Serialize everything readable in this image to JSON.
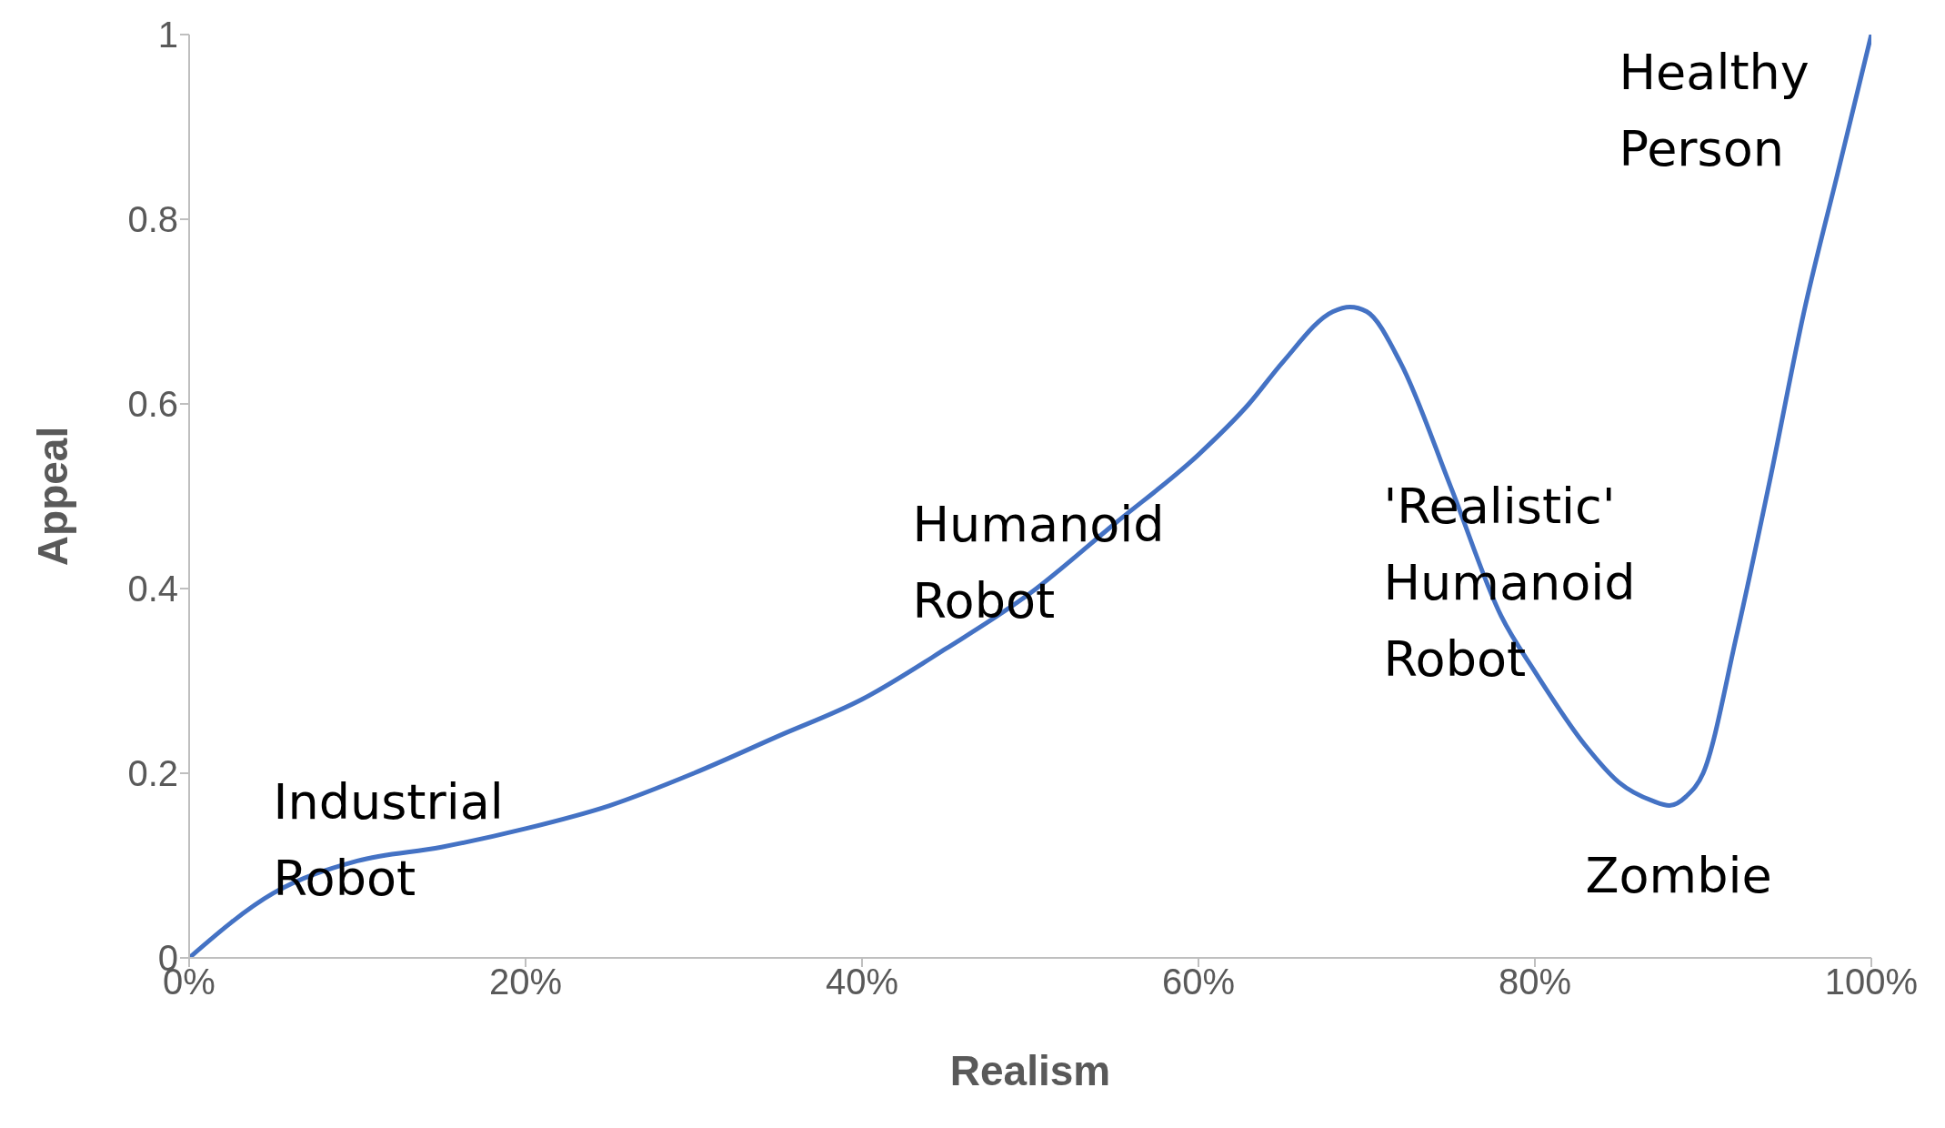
{
  "chart_data": {
    "type": "line",
    "xlabel": "Realism",
    "ylabel": "Appeal",
    "x": [
      0,
      5,
      10,
      15,
      20,
      25,
      30,
      35,
      40,
      45,
      50,
      55,
      60,
      63,
      65,
      68,
      69,
      70,
      72,
      75,
      78,
      80,
      83,
      85,
      87,
      88,
      89,
      90,
      92,
      94,
      96,
      98,
      100
    ],
    "series": [
      {
        "color": "#4472c4",
        "values": [
          0,
          0.07,
          0.105,
          0.12,
          0.14,
          0.165,
          0.2,
          0.24,
          0.28,
          0.335,
          0.395,
          0.47,
          0.545,
          0.6,
          0.645,
          0.7,
          0.705,
          0.7,
          0.645,
          0.51,
          0.37,
          0.31,
          0.23,
          0.19,
          0.17,
          0.165,
          0.175,
          0.2,
          0.35,
          0.52,
          0.7,
          0.85,
          1
        ]
      }
    ],
    "xlim": [
      0,
      100
    ],
    "xticks": [
      {
        "value": 0,
        "label": "0%"
      },
      {
        "value": 20,
        "label": "20%"
      },
      {
        "value": 40,
        "label": "40%"
      },
      {
        "value": 60,
        "label": "60%"
      },
      {
        "value": 80,
        "label": "80%"
      },
      {
        "value": 100,
        "label": "100%"
      }
    ],
    "ylim": [
      0,
      1
    ],
    "yticks": [
      0,
      0.2,
      0.4,
      0.6,
      0.8,
      1
    ],
    "grid": false,
    "legend": false,
    "marker": "none",
    "line_style": "solid",
    "annotations": [
      "Industrial Robot",
      "Humanoid Robot",
      "'Realistic' Humanoid Robot",
      "Zombie",
      "Healthy Person"
    ]
  }
}
